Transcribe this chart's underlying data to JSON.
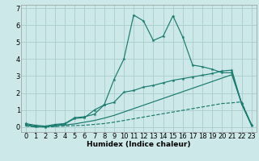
{
  "xlabel": "Humidex (Indice chaleur)",
  "bg_color": "#cce8e8",
  "grid_color": "#aacccc",
  "line_color": "#1a7a6e",
  "x_values": [
    0,
    1,
    2,
    3,
    4,
    5,
    6,
    7,
    8,
    9,
    10,
    11,
    12,
    13,
    14,
    15,
    16,
    17,
    18,
    19,
    20,
    21,
    22,
    23
  ],
  "line1_y": [
    0.2,
    0.1,
    0.05,
    0.15,
    0.2,
    0.55,
    0.6,
    0.75,
    1.3,
    2.8,
    4.0,
    6.6,
    6.25,
    5.1,
    5.35,
    6.55,
    5.3,
    3.65,
    3.55,
    3.4,
    3.2,
    3.2,
    1.4,
    0.15
  ],
  "line2_y": [
    0.15,
    0.05,
    0.0,
    0.1,
    0.18,
    0.5,
    0.55,
    1.0,
    1.3,
    1.45,
    2.05,
    2.15,
    2.35,
    2.45,
    2.6,
    2.75,
    2.85,
    2.95,
    3.05,
    3.15,
    3.3,
    3.35,
    1.35,
    0.1
  ],
  "line3_y": [
    0.05,
    0.0,
    0.0,
    0.02,
    0.05,
    0.08,
    0.1,
    0.15,
    0.2,
    0.28,
    0.38,
    0.48,
    0.58,
    0.68,
    0.78,
    0.88,
    0.98,
    1.08,
    1.18,
    1.28,
    1.38,
    1.42,
    1.48,
    0.1
  ],
  "line4_y": [
    0.1,
    0.0,
    0.02,
    0.08,
    0.12,
    0.18,
    0.28,
    0.38,
    0.52,
    0.68,
    0.88,
    1.08,
    1.28,
    1.48,
    1.68,
    1.88,
    2.08,
    2.28,
    2.48,
    2.68,
    2.88,
    3.08,
    1.35,
    0.1
  ],
  "ylim": [
    -0.3,
    7.2
  ],
  "xlim": [
    -0.5,
    23.5
  ],
  "yticks": [
    0,
    1,
    2,
    3,
    4,
    5,
    6,
    7
  ],
  "xticks": [
    0,
    1,
    2,
    3,
    4,
    5,
    6,
    7,
    8,
    9,
    10,
    11,
    12,
    13,
    14,
    15,
    16,
    17,
    18,
    19,
    20,
    21,
    22,
    23
  ],
  "xlabel_fontsize": 6.5,
  "tick_fontsize": 6.0
}
